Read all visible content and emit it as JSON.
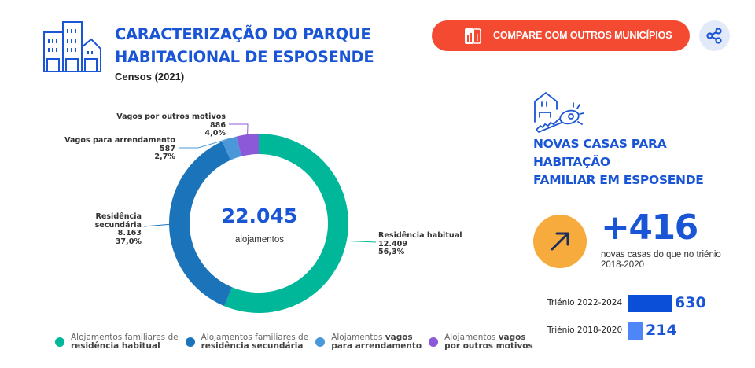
{
  "header": {
    "title_line1": "CARACTERIZAÇÃO DO PARQUE",
    "title_line2": "HABITACIONAL DE ESPOSENDE",
    "subtitle": "Censos (2021)",
    "compare_button_label": "COMPARE COM OUTROS MUNICÍPIOS",
    "buildings_icon": "buildings-icon",
    "compare_icon": "chart-compare-icon",
    "share_icon": "share-icon"
  },
  "colors": {
    "brand_blue": "#1a55d6",
    "button_red": "#f44a32",
    "accent_orange": "#f7ab3c"
  },
  "chart_data": [
    {
      "type": "pie",
      "variant": "donut",
      "title": "Caracterização do Parque Habitacional de Esposende",
      "center_value": "22.045",
      "center_label": "alojamentos",
      "total": 22045,
      "slices": [
        {
          "key": "habitual",
          "label": "Residência habitual",
          "value": 12409,
          "value_label": "12.409",
          "percent_label": "56,3%",
          "color": "#00b899"
        },
        {
          "key": "secundaria",
          "label": "Residência secundária",
          "value": 8163,
          "value_label": "8.163",
          "percent_label": "37,0%",
          "color": "#1b73b9"
        },
        {
          "key": "arrendamento",
          "label": "Vagos para arrendamento",
          "value": 587,
          "value_label": "587",
          "percent_label": "2,7%",
          "color": "#4a98d8"
        },
        {
          "key": "outros",
          "label": "Vagos por outros motivos",
          "value": 886,
          "value_label": "886",
          "percent_label": "4,0%",
          "color": "#8c5ad9"
        }
      ],
      "legend": {
        "placement": "bottom",
        "items": [
          {
            "normal": "Alojamentos familiares de",
            "bold": "residência habitual",
            "color": "#00b899"
          },
          {
            "normal": "Alojamentos familiares de",
            "bold": "residência secundária",
            "color": "#1b73b9"
          },
          {
            "normal": "Alojamentos ",
            "bold_inline": "vagos",
            "bold": "para arrendamento",
            "color": "#4a98d8"
          },
          {
            "normal": "Alojamentos ",
            "bold_inline": "vagos",
            "bold": "por outros motivos",
            "color": "#8c5ad9"
          }
        ]
      }
    },
    {
      "type": "bar",
      "orientation": "horizontal",
      "title": "Novas casas para habitação familiar em Esposende",
      "categories": [
        "Triénio 2022-2024",
        "Triénio 2018-2020"
      ],
      "values": [
        630,
        214
      ],
      "colors": [
        "#0b4fd8",
        "#4f86f7"
      ]
    }
  ],
  "new_houses": {
    "icon": "house-key-icon",
    "title_line1": "NOVAS CASAS PARA",
    "title_line2": "HABITAÇÃO",
    "title_line3": "FAMILIAR EM ESPOSENDE",
    "arrow_icon": "arrow-up-right-icon",
    "delta": "+416",
    "delta_sub_line1": "novas casas do que no triénio",
    "delta_sub_line2": "2018-2020"
  }
}
